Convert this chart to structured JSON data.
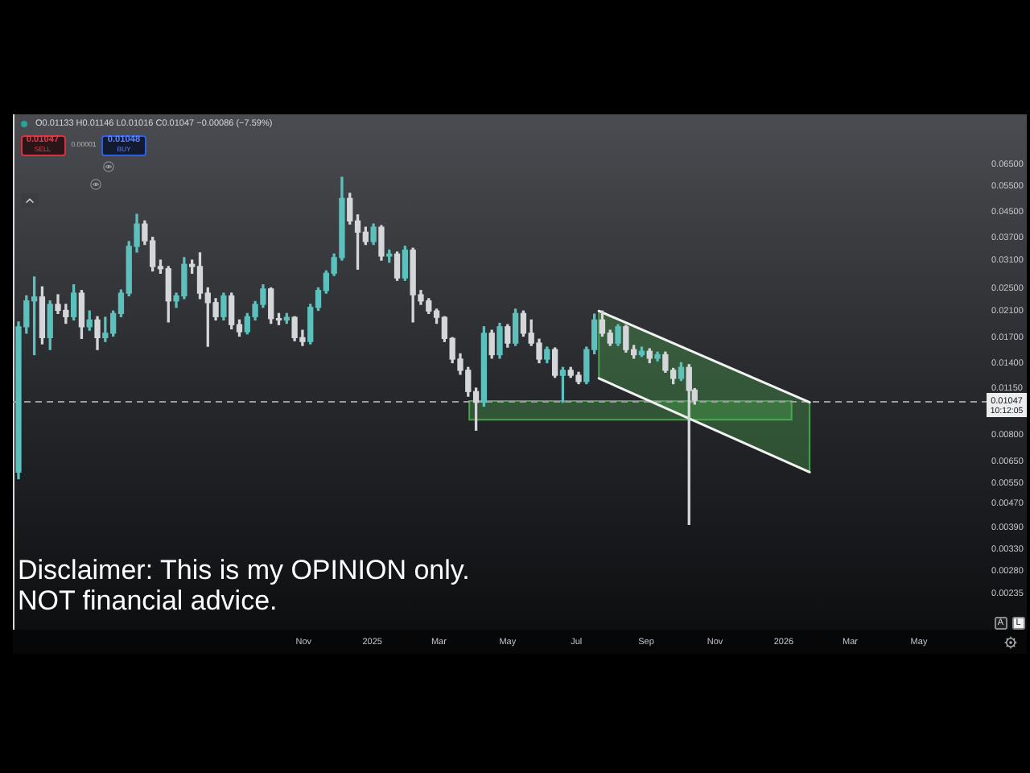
{
  "chart_data": {
    "type": "candlestick",
    "x": [
      "2024-02-22",
      "2024-02-29",
      "2024-03-07",
      "2024-03-14",
      "2024-03-21",
      "2024-03-28",
      "2024-04-04",
      "2024-04-11",
      "2024-04-18",
      "2024-04-25",
      "2024-05-02",
      "2024-05-09",
      "2024-05-16",
      "2024-05-23",
      "2024-05-30",
      "2024-06-06",
      "2024-06-13",
      "2024-06-20",
      "2024-06-27",
      "2024-07-04",
      "2024-07-11",
      "2024-07-18",
      "2024-07-25",
      "2024-08-01",
      "2024-08-08",
      "2024-08-15",
      "2024-08-22",
      "2024-08-29",
      "2024-09-05",
      "2024-09-12",
      "2024-09-19",
      "2024-09-26",
      "2024-10-03",
      "2024-10-10",
      "2024-10-17",
      "2024-10-24",
      "2024-10-31",
      "2024-11-07",
      "2024-11-14",
      "2024-11-21",
      "2024-11-28",
      "2024-12-05",
      "2024-12-12",
      "2024-12-19",
      "2024-12-26",
      "2025-01-02",
      "2025-01-09",
      "2025-01-16",
      "2025-01-23",
      "2025-01-30",
      "2025-02-06",
      "2025-02-13",
      "2025-02-20",
      "2025-02-27",
      "2025-03-06",
      "2025-03-13",
      "2025-03-20",
      "2025-03-27",
      "2025-04-03",
      "2025-04-10",
      "2025-04-17",
      "2025-04-24",
      "2025-05-01",
      "2025-05-08",
      "2025-05-15",
      "2025-05-22",
      "2025-05-29",
      "2025-06-05",
      "2025-06-12",
      "2025-06-19",
      "2025-06-26",
      "2025-07-03",
      "2025-07-10",
      "2025-07-17",
      "2025-07-24",
      "2025-07-31",
      "2025-08-07",
      "2025-08-14",
      "2025-08-21",
      "2025-08-28",
      "2025-09-04",
      "2025-09-11",
      "2025-09-18",
      "2025-09-25",
      "2025-10-02",
      "2025-10-09",
      "2025-10-14"
    ],
    "ohlc": [
      [
        0.006,
        0.0192,
        0.0057,
        0.0185
      ],
      [
        0.0185,
        0.0235,
        0.0176,
        0.0226
      ],
      [
        0.0226,
        0.0272,
        0.0149,
        0.0233
      ],
      [
        0.0233,
        0.0252,
        0.0162,
        0.017
      ],
      [
        0.017,
        0.0226,
        0.0155,
        0.022
      ],
      [
        0.022,
        0.0237,
        0.0205,
        0.021
      ],
      [
        0.021,
        0.022,
        0.019,
        0.02
      ],
      [
        0.02,
        0.0256,
        0.0195,
        0.024
      ],
      [
        0.024,
        0.0245,
        0.0169,
        0.0185
      ],
      [
        0.0185,
        0.0209,
        0.018,
        0.0195
      ],
      [
        0.0195,
        0.02,
        0.0155,
        0.017
      ],
      [
        0.017,
        0.0199,
        0.0165,
        0.0176
      ],
      [
        0.0176,
        0.0209,
        0.0172,
        0.0205
      ],
      [
        0.0205,
        0.0246,
        0.02,
        0.024
      ],
      [
        0.024,
        0.0358,
        0.0235,
        0.0345
      ],
      [
        0.0345,
        0.0442,
        0.033,
        0.041
      ],
      [
        0.041,
        0.042,
        0.035,
        0.036
      ],
      [
        0.036,
        0.037,
        0.0285,
        0.0295
      ],
      [
        0.0295,
        0.031,
        0.028,
        0.029
      ],
      [
        0.029,
        0.0295,
        0.0192,
        0.0226
      ],
      [
        0.0226,
        0.024,
        0.0215,
        0.0235
      ],
      [
        0.0235,
        0.0316,
        0.023,
        0.03
      ],
      [
        0.03,
        0.031,
        0.028,
        0.0295
      ],
      [
        0.0295,
        0.0328,
        0.023,
        0.024
      ],
      [
        0.024,
        0.025,
        0.0159,
        0.0223
      ],
      [
        0.0223,
        0.023,
        0.0195,
        0.02
      ],
      [
        0.02,
        0.024,
        0.0195,
        0.0235
      ],
      [
        0.0235,
        0.024,
        0.0182,
        0.0188
      ],
      [
        0.0188,
        0.0195,
        0.0172,
        0.0178
      ],
      [
        0.0178,
        0.0205,
        0.0175,
        0.02
      ],
      [
        0.02,
        0.0225,
        0.0195,
        0.022
      ],
      [
        0.022,
        0.0256,
        0.0215,
        0.0248
      ],
      [
        0.0248,
        0.025,
        0.019,
        0.0197
      ],
      [
        0.0197,
        0.0205,
        0.0188,
        0.0195
      ],
      [
        0.0195,
        0.0205,
        0.019,
        0.0199
      ],
      [
        0.0199,
        0.02,
        0.0166,
        0.017
      ],
      [
        0.017,
        0.018,
        0.016,
        0.0165
      ],
      [
        0.0165,
        0.022,
        0.0162,
        0.0215
      ],
      [
        0.0215,
        0.025,
        0.021,
        0.0245
      ],
      [
        0.0245,
        0.0285,
        0.024,
        0.028
      ],
      [
        0.028,
        0.0325,
        0.0275,
        0.0316
      ],
      [
        0.0316,
        0.0589,
        0.031,
        0.05
      ],
      [
        0.05,
        0.052,
        0.041,
        0.042
      ],
      [
        0.042,
        0.044,
        0.0289,
        0.0385
      ],
      [
        0.0385,
        0.04,
        0.035,
        0.0358
      ],
      [
        0.0358,
        0.041,
        0.035,
        0.04
      ],
      [
        0.04,
        0.0405,
        0.031,
        0.032
      ],
      [
        0.032,
        0.0335,
        0.0305,
        0.0325
      ],
      [
        0.0325,
        0.033,
        0.0265,
        0.027
      ],
      [
        0.027,
        0.0345,
        0.0265,
        0.0335
      ],
      [
        0.0335,
        0.034,
        0.0192,
        0.0237
      ],
      [
        0.0237,
        0.0245,
        0.022,
        0.0226
      ],
      [
        0.0226,
        0.023,
        0.0205,
        0.0209
      ],
      [
        0.0209,
        0.0212,
        0.019,
        0.0199
      ],
      [
        0.0199,
        0.02,
        0.0165,
        0.0169
      ],
      [
        0.0169,
        0.017,
        0.014,
        0.0144
      ],
      [
        0.0144,
        0.015,
        0.0128,
        0.0132
      ],
      [
        0.0132,
        0.0135,
        0.0108,
        0.0112
      ],
      [
        0.0112,
        0.0115,
        0.0083,
        0.0103
      ],
      [
        0.0103,
        0.0185,
        0.01,
        0.0176
      ],
      [
        0.0176,
        0.018,
        0.0145,
        0.0149
      ],
      [
        0.0149,
        0.019,
        0.0145,
        0.0185
      ],
      [
        0.0185,
        0.0188,
        0.0158,
        0.0163
      ],
      [
        0.0163,
        0.0212,
        0.016,
        0.0205
      ],
      [
        0.0205,
        0.0209,
        0.0172,
        0.0176
      ],
      [
        0.0176,
        0.0195,
        0.016,
        0.0163
      ],
      [
        0.0163,
        0.0168,
        0.014,
        0.0144
      ],
      [
        0.0144,
        0.0158,
        0.014,
        0.0155
      ],
      [
        0.0155,
        0.0157,
        0.0125,
        0.0127
      ],
      [
        0.0127,
        0.0135,
        0.0103,
        0.0132
      ],
      [
        0.0132,
        0.0135,
        0.0125,
        0.0127
      ],
      [
        0.0127,
        0.013,
        0.0119,
        0.0121
      ],
      [
        0.0121,
        0.0158,
        0.0119,
        0.0155
      ],
      [
        0.0155,
        0.0204,
        0.015,
        0.0195
      ],
      [
        0.0195,
        0.0209,
        0.0172,
        0.0176
      ],
      [
        0.0176,
        0.018,
        0.016,
        0.0163
      ],
      [
        0.0163,
        0.0188,
        0.016,
        0.0185
      ],
      [
        0.0185,
        0.0187,
        0.0152,
        0.0155
      ],
      [
        0.0155,
        0.016,
        0.0145,
        0.0149
      ],
      [
        0.0149,
        0.0158,
        0.0147,
        0.0153
      ],
      [
        0.0153,
        0.0156,
        0.014,
        0.0145
      ],
      [
        0.0145,
        0.0152,
        0.0142,
        0.0149
      ],
      [
        0.0149,
        0.0152,
        0.013,
        0.0132
      ],
      [
        0.0132,
        0.0134,
        0.0119,
        0.0124
      ],
      [
        0.0124,
        0.014,
        0.0122,
        0.0135
      ],
      [
        0.0135,
        0.0138,
        0.004,
        0.0113
      ],
      [
        0.01133,
        0.01146,
        0.01016,
        0.01047
      ]
    ],
    "colors": [
      "#5cc1bd",
      "#5cc1bd",
      "#5cc1bd",
      "#d4d6d9",
      "#5cc1bd",
      "#d4d6d9",
      "#d4d6d9",
      "#5cc1bd",
      "#d4d6d9",
      "#5cc1bd",
      "#d4d6d9",
      "#5cc1bd",
      "#5cc1bd",
      "#5cc1bd",
      "#5cc1bd",
      "#5cc1bd",
      "#d4d6d9",
      "#d4d6d9",
      "#d4d6d9",
      "#d4d6d9",
      "#5cc1bd",
      "#5cc1bd",
      "#d4d6d9",
      "#d4d6d9",
      "#d4d6d9",
      "#d4d6d9",
      "#5cc1bd",
      "#d4d6d9",
      "#d4d6d9",
      "#5cc1bd",
      "#5cc1bd",
      "#5cc1bd",
      "#d4d6d9",
      "#d4d6d9",
      "#5cc1bd",
      "#d4d6d9",
      "#d4d6d9",
      "#5cc1bd",
      "#5cc1bd",
      "#5cc1bd",
      "#5cc1bd",
      "#5cc1bd",
      "#d4d6d9",
      "#d4d6d9",
      "#d4d6d9",
      "#5cc1bd",
      "#d4d6d9",
      "#5cc1bd",
      "#d4d6d9",
      "#5cc1bd",
      "#d4d6d9",
      "#d4d6d9",
      "#d4d6d9",
      "#d4d6d9",
      "#d4d6d9",
      "#d4d6d9",
      "#d4d6d9",
      "#d4d6d9",
      "#d4d6d9",
      "#5cc1bd",
      "#d4d6d9",
      "#5cc1bd",
      "#d4d6d9",
      "#5cc1bd",
      "#d4d6d9",
      "#d4d6d9",
      "#d4d6d9",
      "#5cc1bd",
      "#d4d6d9",
      "#5cc1bd",
      "#d4d6d9",
      "#d4d6d9",
      "#5cc1bd",
      "#5cc1bd",
      "#d4d6d9",
      "#d4d6d9",
      "#5cc1bd",
      "#d4d6d9",
      "#d4d6d9",
      "#5cc1bd",
      "#d4d6d9",
      "#5cc1bd",
      "#d4d6d9",
      "#d4d6d9",
      "#5cc1bd",
      "#d4d6d9",
      "#d4d6d9"
    ],
    "series": [
      {
        "type": "line",
        "color": "#4caf50",
        "x": [
          "2025-03-28",
          "2026-01-08"
        ],
        "values": [
          null,
          null
        ],
        "lower": [
          0.009,
          0.009
        ],
        "upper": [
          0.0104,
          0.0104
        ]
      },
      {
        "type": "line",
        "color": "#4caf50",
        "x": [
          "2025-07-21",
          "2026-01-24"
        ],
        "values": [
          null,
          null
        ],
        "lower": [
          0.0124,
          0.006
        ],
        "upper": [
          0.0209,
          0.0103
        ]
      },
      {
        "type": "line",
        "color": "#f2f2f2",
        "x": [
          "2025-07-21",
          "2026-01-24"
        ],
        "values": [
          0.0209,
          0.0103
        ]
      },
      {
        "type": "line",
        "color": "#f2f2f2",
        "x": [
          "2025-07-21",
          "2026-01-24"
        ],
        "values": [
          0.0124,
          0.006
        ]
      }
    ],
    "xlim": [
      "2024-02-17",
      "2026-06-30"
    ],
    "xticks": [
      {
        "value": "2024-11-01",
        "label": "Nov"
      },
      {
        "value": "2025-01-01",
        "label": "2025"
      },
      {
        "value": "2025-03-01",
        "label": "Mar"
      },
      {
        "value": "2025-05-01",
        "label": "May"
      },
      {
        "value": "2025-07-01",
        "label": "Jul"
      },
      {
        "value": "2025-09-01",
        "label": "Sep"
      },
      {
        "value": "2025-11-01",
        "label": "Nov"
      },
      {
        "value": "2026-01-01",
        "label": "2026"
      },
      {
        "value": "2026-03-01",
        "label": "Mar"
      },
      {
        "value": "2026-05-01",
        "label": "May"
      }
    ],
    "ylim": [
      0.00177,
      0.0959
    ],
    "yticks": [
      {
        "value": 0.065,
        "label": "0.06500"
      },
      {
        "value": 0.055,
        "label": "0.05500"
      },
      {
        "value": 0.045,
        "label": "0.04500"
      },
      {
        "value": 0.037,
        "label": "0.03700"
      },
      {
        "value": 0.031,
        "label": "0.03100"
      },
      {
        "value": 0.025,
        "label": "0.02500"
      },
      {
        "value": 0.021,
        "label": "0.02100"
      },
      {
        "value": 0.017,
        "label": "0.01700"
      },
      {
        "value": 0.014,
        "label": "0.01400"
      },
      {
        "value": 0.0115,
        "label": "0.01150"
      },
      {
        "value": 0.008,
        "label": "0.00800"
      },
      {
        "value": 0.0065,
        "label": "0.00650"
      },
      {
        "value": 0.0055,
        "label": "0.00550"
      },
      {
        "value": 0.0047,
        "label": "0.00470"
      },
      {
        "value": 0.0039,
        "label": "0.00390"
      },
      {
        "value": 0.0033,
        "label": "0.00330"
      },
      {
        "value": 0.0028,
        "label": "0.00280"
      },
      {
        "value": 0.00235,
        "label": "0.00235"
      }
    ],
    "log": "y",
    "ref_lines": [
      {
        "axis": "y",
        "value": 0.01047,
        "label": "0.01047",
        "line_style": "dashed",
        "color": "#9a9ca0"
      }
    ],
    "annotations": [
      "O0.01133 H0.01146 L0.01016 C0.01047 −0.00086 (−7.59%)",
      "0.01047",
      "SELL",
      "0.00001",
      "0.01048",
      "BUY",
      "10:12:05",
      "A",
      "L",
      "Disclaimer: This is my OPINION only.",
      "NOT financial advice."
    ]
  }
}
